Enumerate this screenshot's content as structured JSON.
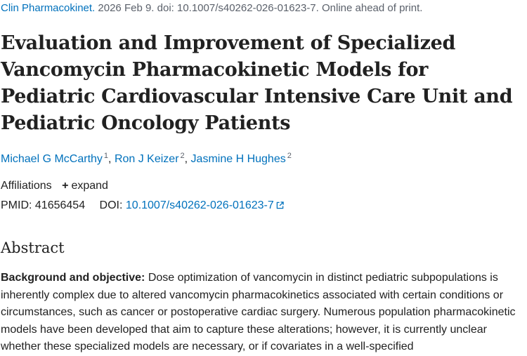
{
  "citation": {
    "journal": "Clin Pharmacokinet.",
    "details": "2026 Feb 9. doi: 10.1007/s40262-026-01623-7. Online ahead of print."
  },
  "title": "Evaluation and Improvement of Specialized Vancomycin Pharmacokinetic Models for Pediatric Cardiovascular Intensive Care Unit and Pediatric Oncology Patients",
  "authors": [
    {
      "name": "Michael G McCarthy",
      "affiliation": "1"
    },
    {
      "name": "Ron J Keizer",
      "affiliation": "2"
    },
    {
      "name": "Jasmine H Hughes",
      "affiliation": "2"
    }
  ],
  "affiliations": {
    "label": "Affiliations",
    "expand_label": "expand"
  },
  "ids": {
    "pmid_label": "PMID:",
    "pmid": "41656454",
    "doi_label": "DOI:",
    "doi": "10.1007/s40262-026-01623-7"
  },
  "abstract": {
    "heading": "Abstract",
    "section_label": "Background and objective:",
    "section_text": "Dose optimization of vancomycin in distinct pediatric subpopulations is inherently complex due to altered vancomycin pharmacokinetics associated with certain conditions or circumstances, such as cancer or postoperative cardiac surgery. Numerous population pharmacokinetic models have been developed that aim to capture these alterations; however, it is currently unclear whether these specialized models are necessary, or if covariates in a well-specified"
  },
  "icons": {
    "expand": "plus-icon",
    "external_link": "external-link-icon"
  },
  "colors": {
    "link": "#0071bc",
    "text": "#212121",
    "muted": "#5b616b"
  }
}
